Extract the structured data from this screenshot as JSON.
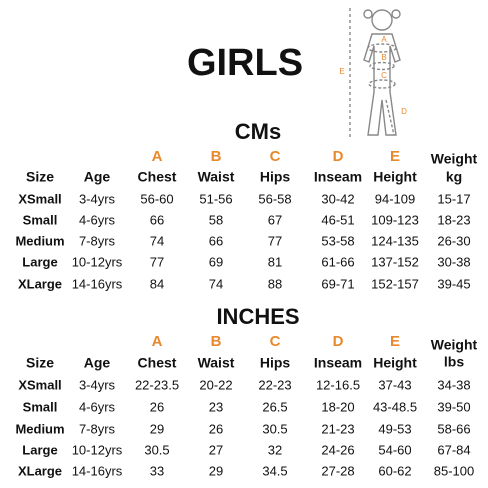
{
  "header": {
    "title": "GIRLS"
  },
  "figure": {
    "labels": [
      "A",
      "B",
      "C",
      "D",
      "E"
    ]
  },
  "tables": [
    {
      "title": "CMs",
      "letters": [
        "A",
        "B",
        "C",
        "D",
        "E"
      ],
      "headers": [
        "Size",
        "Age",
        "Chest",
        "Waist",
        "Hips",
        "Inseam",
        "Height",
        "Weight"
      ],
      "unit": "kg",
      "rows": [
        [
          "XSmall",
          "3-4yrs",
          "56-60",
          "51-56",
          "56-58",
          "30-42",
          "94-109",
          "15-17"
        ],
        [
          "Small",
          "4-6yrs",
          "66",
          "58",
          "67",
          "46-51",
          "109-123",
          "18-23"
        ],
        [
          "Medium",
          "7-8yrs",
          "74",
          "66",
          "77",
          "53-58",
          "124-135",
          "26-30"
        ],
        [
          "Large",
          "10-12yrs",
          "77",
          "69",
          "81",
          "61-66",
          "137-152",
          "30-38"
        ],
        [
          "XLarge",
          "14-16yrs",
          "84",
          "74",
          "88",
          "69-71",
          "152-157",
          "39-45"
        ]
      ]
    },
    {
      "title": "INCHES",
      "letters": [
        "A",
        "B",
        "C",
        "D",
        "E"
      ],
      "headers": [
        "Size",
        "Age",
        "Chest",
        "Waist",
        "Hips",
        "Inseam",
        "Height",
        "Weight"
      ],
      "unit": "lbs",
      "rows": [
        [
          "XSmall",
          "3-4yrs",
          "22-23.5",
          "20-22",
          "22-23",
          "12-16.5",
          "37-43",
          "34-38"
        ],
        [
          "Small",
          "4-6yrs",
          "26",
          "23",
          "26.5",
          "18-20",
          "43-48.5",
          "39-50"
        ],
        [
          "Medium",
          "7-8yrs",
          "29",
          "26",
          "30.5",
          "21-23",
          "49-53",
          "58-66"
        ],
        [
          "Large",
          "10-12yrs",
          "30.5",
          "27",
          "32",
          "24-26",
          "54-60",
          "67-84"
        ],
        [
          "XLarge",
          "14-16yrs",
          "33",
          "29",
          "34.5",
          "27-28",
          "60-62",
          "85-100"
        ]
      ]
    }
  ]
}
